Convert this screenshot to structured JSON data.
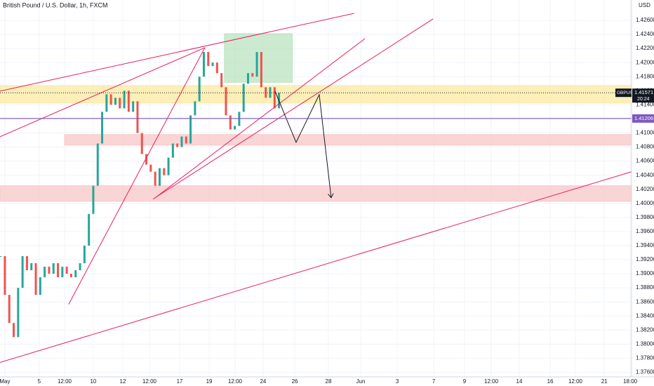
{
  "chart_data": {
    "type": "candlestick",
    "title": "British Pound / U.S. Dollar, 1h, FXCM",
    "currency": "USD",
    "xlim": [
      -0.33,
      42.52
    ],
    "ylim": [
      1.37535,
      1.42889
    ],
    "grid": true,
    "xticks": [
      {
        "value": 0,
        "label": "May"
      },
      {
        "value": 2.33,
        "label": "5"
      },
      {
        "value": 4.05,
        "label": "12:00"
      },
      {
        "value": 6,
        "label": "10"
      },
      {
        "value": 8,
        "label": "12"
      },
      {
        "value": 9.81,
        "label": "12:00"
      },
      {
        "value": 11.86,
        "label": "17"
      },
      {
        "value": 13.86,
        "label": "19"
      },
      {
        "value": 15.62,
        "label": "12:00"
      },
      {
        "value": 17.52,
        "label": "24"
      },
      {
        "value": 19.67,
        "label": "26"
      },
      {
        "value": 21.95,
        "label": "28"
      },
      {
        "value": 24.14,
        "label": "Jun"
      },
      {
        "value": 26.62,
        "label": "3"
      },
      {
        "value": 29.1,
        "label": "7"
      },
      {
        "value": 31.19,
        "label": "9"
      },
      {
        "value": 33,
        "label": "12:00"
      },
      {
        "value": 34.9,
        "label": "14"
      },
      {
        "value": 37,
        "label": "16"
      },
      {
        "value": 38.71,
        "label": "12:00"
      },
      {
        "value": 40.67,
        "label": "21"
      },
      {
        "value": 42.43,
        "label": "18:00"
      }
    ],
    "yticks": [
      {
        "value": 1.376,
        "label": "1.37600"
      },
      {
        "value": 1.378,
        "label": "1.37800"
      },
      {
        "value": 1.38,
        "label": "1.38000"
      },
      {
        "value": 1.382,
        "label": "1.38200"
      },
      {
        "value": 1.384,
        "label": "1.38400"
      },
      {
        "value": 1.386,
        "label": "1.38600"
      },
      {
        "value": 1.388,
        "label": "1.38800"
      },
      {
        "value": 1.39,
        "label": "1.39000"
      },
      {
        "value": 1.392,
        "label": "1.39200"
      },
      {
        "value": 1.394,
        "label": "1.39400"
      },
      {
        "value": 1.396,
        "label": "1.39600"
      },
      {
        "value": 1.398,
        "label": "1.39800"
      },
      {
        "value": 1.4,
        "label": "1.40000"
      },
      {
        "value": 1.402,
        "label": "1.40200"
      },
      {
        "value": 1.404,
        "label": "1.40400"
      },
      {
        "value": 1.406,
        "label": "1.40600"
      },
      {
        "value": 1.408,
        "label": "1.40800"
      },
      {
        "value": 1.41,
        "label": "1.41000"
      },
      {
        "value": 1.412,
        "label": "1.41200"
      },
      {
        "value": 1.414,
        "label": "1.41400"
      },
      {
        "value": 1.416,
        "label": "1.41600"
      },
      {
        "value": 1.418,
        "label": "1.41800"
      },
      {
        "value": 1.42,
        "label": "1.42000"
      },
      {
        "value": 1.422,
        "label": "1.42200"
      },
      {
        "value": 1.424,
        "label": "1.42400"
      },
      {
        "value": 1.426,
        "label": "1.42600"
      }
    ],
    "series": [
      {
        "name": "GBPUSD",
        "up_color": "#26a69a",
        "down_color": "#ef5350",
        "x": [
          -0.3,
          0,
          0.3,
          0.6,
          0.9,
          1.2,
          1.5,
          1.8,
          2.1,
          2.4,
          2.7,
          3,
          3.3,
          3.6,
          3.9,
          4.2,
          4.5,
          4.8,
          5.1,
          5.4,
          5.7,
          6,
          6.3,
          6.6,
          6.9,
          7.2,
          7.5,
          7.8,
          8.1,
          8.4,
          8.7,
          9,
          9.3,
          9.6,
          9.9,
          10.2,
          10.5,
          10.8,
          11.1,
          11.4,
          11.7,
          12,
          12.3,
          12.6,
          12.9,
          13.2,
          13.5,
          13.8,
          14.1,
          14.4,
          14.7,
          15,
          15.3,
          15.6,
          15.9,
          16.2,
          16.5,
          16.8,
          17.1,
          17.4,
          17.7,
          18,
          18.3,
          18.6
        ],
        "values": [
          1.3925,
          1.387,
          1.383,
          1.381,
          1.388,
          1.3925,
          1.3905,
          1.3915,
          1.387,
          1.3895,
          1.391,
          1.39,
          1.3915,
          1.3895,
          1.391,
          1.39,
          1.3895,
          1.3905,
          1.3915,
          1.394,
          1.3985,
          1.4025,
          1.4085,
          1.413,
          1.4155,
          1.414,
          1.415,
          1.4135,
          1.416,
          1.413,
          1.4145,
          1.41,
          1.407,
          1.4055,
          1.4045,
          1.4025,
          1.405,
          1.404,
          1.4065,
          1.4085,
          1.408,
          1.4095,
          1.4085,
          1.4125,
          1.4145,
          1.418,
          1.4215,
          1.4195,
          1.42,
          1.4185,
          1.4165,
          1.4125,
          1.4105,
          1.411,
          1.413,
          1.417,
          1.4185,
          1.418,
          1.4215,
          1.4165,
          1.415,
          1.4165,
          1.4135,
          1.4157
        ]
      }
    ],
    "last_price": 1.41571,
    "last_time": "20:24",
    "level": 1.41206,
    "level_color": "#7e57c2",
    "zones": [
      {
        "x": [
          -0.33,
          42.52
        ],
        "y": [
          1.41425,
          1.41674
        ],
        "color": "#fbe9a0"
      },
      {
        "x": [
          14.9,
          19.5
        ],
        "y": [
          1.4172,
          1.4241
        ],
        "color": "#b9e3bf"
      },
      {
        "x": [
          4.05,
          42.52
        ],
        "y": [
          1.40827,
          1.40977
        ],
        "color": "#f8c7c7"
      },
      {
        "x": [
          -0.33,
          42.52
        ],
        "y": [
          1.4003,
          1.4025
        ],
        "color": "#f8c7c7"
      }
    ],
    "lines": [
      {
        "x": [
          -0.33,
          23.7
        ],
        "y": [
          1.41594,
          1.427
        ],
        "color": "#e91e63"
      },
      {
        "x": [
          -0.33,
          13.57
        ],
        "y": [
          1.40947,
          1.42212
        ],
        "color": "#e91e63"
      },
      {
        "x": [
          10.05,
          29.05
        ],
        "y": [
          1.4006,
          1.4262
        ],
        "color": "#e91e63"
      },
      {
        "x": [
          4.33,
          13.57
        ],
        "y": [
          1.38566,
          1.42212
        ],
        "color": "#e91e63"
      },
      {
        "x": [
          -0.33,
          42.52
        ],
        "y": [
          1.3774,
          1.40449
        ],
        "color": "#e91e63"
      },
      {
        "x": [
          10.14,
          24.43
        ],
        "y": [
          1.4007,
          1.42341
        ],
        "color": "#e91e63"
      }
    ],
    "projection": {
      "x": [
        18.33,
        19.76,
        21.33,
        22.14
      ],
      "y": [
        1.41594,
        1.40867,
        1.41544,
        1.4008
      ],
      "color": "#131722"
    }
  }
}
